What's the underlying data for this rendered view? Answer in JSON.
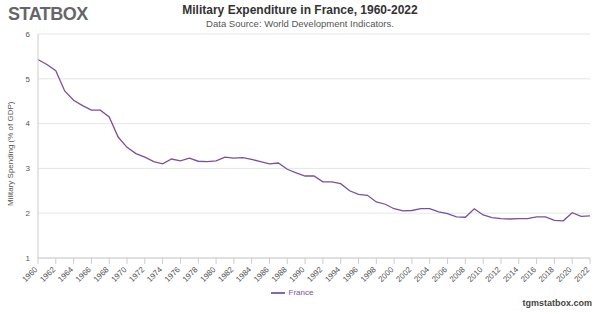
{
  "chart_data": {
    "type": "line",
    "title": "Military Expenditure in France, 1960-2022",
    "subtitle": "Data Source: World Development Indicators.",
    "annotations": [
      "STATBOX",
      "tgmstatbox.com"
    ],
    "y_label": "Military Spending (% of GDP)",
    "x": [
      1960,
      1961,
      1962,
      1963,
      1964,
      1965,
      1966,
      1967,
      1968,
      1969,
      1970,
      1971,
      1972,
      1973,
      1974,
      1975,
      1976,
      1977,
      1978,
      1979,
      1980,
      1981,
      1982,
      1983,
      1984,
      1985,
      1986,
      1987,
      1988,
      1989,
      1990,
      1991,
      1992,
      1993,
      1994,
      1995,
      1996,
      1997,
      1998,
      1999,
      2000,
      2001,
      2002,
      2003,
      2004,
      2005,
      2006,
      2007,
      2008,
      2009,
      2010,
      2011,
      2012,
      2013,
      2014,
      2015,
      2016,
      2017,
      2018,
      2019,
      2020,
      2021,
      2022
    ],
    "series": [
      {
        "name": "France",
        "color": "#7b4f9e",
        "values": [
          5.43,
          5.32,
          5.18,
          4.73,
          4.52,
          4.4,
          4.3,
          4.3,
          4.15,
          3.7,
          3.47,
          3.33,
          3.25,
          3.15,
          3.1,
          3.21,
          3.17,
          3.23,
          3.16,
          3.15,
          3.17,
          3.25,
          3.23,
          3.24,
          3.2,
          3.15,
          3.1,
          3.12,
          2.98,
          2.9,
          2.83,
          2.83,
          2.7,
          2.7,
          2.66,
          2.5,
          2.42,
          2.4,
          2.25,
          2.2,
          2.1,
          2.05,
          2.06,
          2.1,
          2.1,
          2.03,
          1.99,
          1.92,
          1.91,
          2.1,
          1.96,
          1.9,
          1.88,
          1.87,
          1.88,
          1.88,
          1.92,
          1.92,
          1.84,
          1.83,
          2.01,
          1.93,
          1.94
        ]
      }
    ],
    "xlim": [
      1960,
      2022
    ],
    "xticks": [
      1960,
      1962,
      1964,
      1966,
      1968,
      1970,
      1972,
      1974,
      1976,
      1978,
      1980,
      1982,
      1984,
      1986,
      1988,
      1990,
      1992,
      1994,
      1996,
      1998,
      2000,
      2002,
      2004,
      2006,
      2008,
      2010,
      2012,
      2014,
      2016,
      2018,
      2020,
      2022
    ],
    "ylim": [
      1,
      6
    ],
    "yticks": [
      1,
      2,
      3,
      4,
      5,
      6
    ],
    "grid": true,
    "legend": "bottom"
  }
}
